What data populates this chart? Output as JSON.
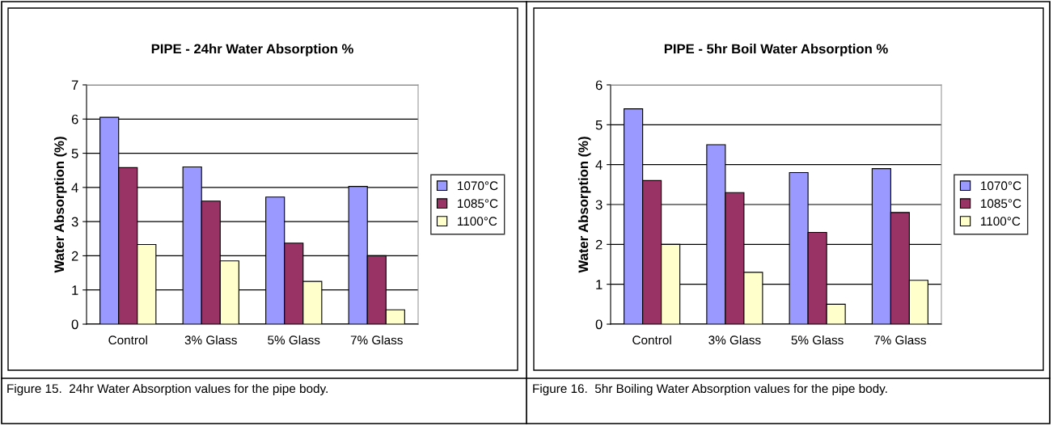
{
  "chart_data": [
    {
      "type": "bar",
      "title": "PIPE - 24hr Water Absorption %",
      "ylabel": "Water Absorption (%)",
      "categories": [
        "Control",
        "3% Glass",
        "5% Glass",
        "7% Glass"
      ],
      "series": [
        {
          "name": "1070°C",
          "color": "#9999ff",
          "values": [
            6.05,
            4.6,
            3.72,
            4.03
          ]
        },
        {
          "name": "1085°C",
          "color": "#993366",
          "values": [
            4.58,
            3.6,
            2.37,
            2.0
          ]
        },
        {
          "name": "1100°C",
          "color": "#ffffcc",
          "values": [
            2.33,
            1.85,
            1.25,
            0.42
          ]
        }
      ],
      "ylim": [
        0,
        7
      ],
      "yticks": [
        0,
        1,
        2,
        3,
        4,
        5,
        6,
        7
      ],
      "grid": "y",
      "legend": "right",
      "annotations": [
        "Figure 15.  24hr Water Absorption values for the pipe body."
      ]
    },
    {
      "type": "bar",
      "title": "PIPE - 5hr Boil Water Absorption %",
      "ylabel": "Water Absorption (%)",
      "categories": [
        "Control",
        "3% Glass",
        "5% Glass",
        "7% Glass"
      ],
      "series": [
        {
          "name": "1070°C",
          "color": "#9999ff",
          "values": [
            5.4,
            4.5,
            3.8,
            3.9
          ]
        },
        {
          "name": "1085°C",
          "color": "#993366",
          "values": [
            3.6,
            3.3,
            2.3,
            2.8
          ]
        },
        {
          "name": "1100°C",
          "color": "#ffffcc",
          "values": [
            2.0,
            1.3,
            0.5,
            1.1
          ]
        }
      ],
      "ylim": [
        0,
        6
      ],
      "yticks": [
        0,
        1,
        2,
        3,
        4,
        5,
        6
      ],
      "grid": "y",
      "legend": "right",
      "annotations": [
        "Figure 16.  5hr Boiling Water Absorption values for the pipe body."
      ]
    }
  ]
}
